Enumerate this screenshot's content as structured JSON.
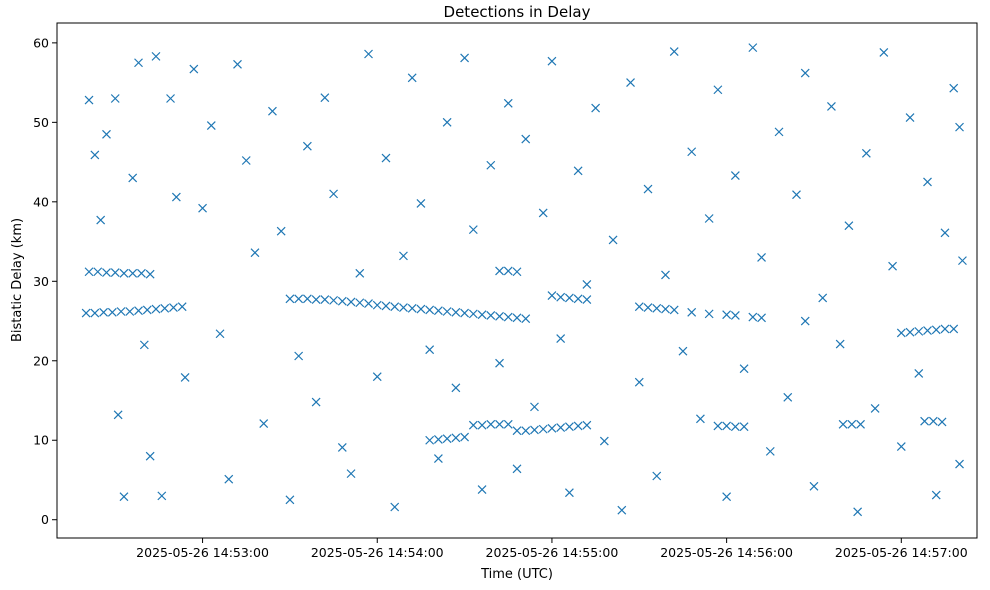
{
  "chart_data": {
    "type": "scatter",
    "title": "Detections in Delay",
    "xlabel": "Time (UTC)",
    "ylabel": "Bistatic Delay (km)",
    "marker": "x",
    "color": "#1f77b4",
    "grid": false,
    "legend": "none",
    "xlim": [
      "2025-05-26 14:52:10",
      "2025-05-26 14:57:26"
    ],
    "ylim": [
      -2.3,
      62.5
    ],
    "xticks": [
      "2025-05-26 14:53:00",
      "2025-05-26 14:54:00",
      "2025-05-26 14:55:00",
      "2025-05-26 14:56:00",
      "2025-05-26 14:57:00"
    ],
    "yticks": [
      0,
      10,
      20,
      30,
      40,
      50,
      60
    ],
    "series": [
      {
        "points": [
          [
            "2025-05-26 14:52:21",
            31.2
          ],
          [
            "2025-05-26 14:52:24",
            31.2
          ],
          [
            "2025-05-26 14:52:27",
            31.1
          ],
          [
            "2025-05-26 14:52:30",
            31.1
          ],
          [
            "2025-05-26 14:52:33",
            31.0
          ],
          [
            "2025-05-26 14:52:36",
            31.0
          ],
          [
            "2025-05-26 14:52:39",
            31.0
          ],
          [
            "2025-05-26 14:52:42",
            30.9
          ],
          [
            "2025-05-26 14:52:20",
            26.0
          ],
          [
            "2025-05-26 14:52:23",
            26.0
          ],
          [
            "2025-05-26 14:52:26",
            26.1
          ],
          [
            "2025-05-26 14:52:29",
            26.1
          ],
          [
            "2025-05-26 14:52:32",
            26.2
          ],
          [
            "2025-05-26 14:52:35",
            26.2
          ],
          [
            "2025-05-26 14:52:38",
            26.3
          ],
          [
            "2025-05-26 14:52:41",
            26.4
          ],
          [
            "2025-05-26 14:52:44",
            26.5
          ],
          [
            "2025-05-26 14:52:47",
            26.6
          ],
          [
            "2025-05-26 14:52:50",
            26.7
          ],
          [
            "2025-05-26 14:52:53",
            26.8
          ],
          [
            "2025-05-26 14:53:30",
            27.8
          ],
          [
            "2025-05-26 14:53:33",
            27.8
          ],
          [
            "2025-05-26 14:53:36",
            27.8
          ],
          [
            "2025-05-26 14:53:39",
            27.7
          ],
          [
            "2025-05-26 14:53:42",
            27.7
          ],
          [
            "2025-05-26 14:53:45",
            27.6
          ],
          [
            "2025-05-26 14:53:48",
            27.5
          ],
          [
            "2025-05-26 14:53:51",
            27.4
          ],
          [
            "2025-05-26 14:53:54",
            27.3
          ],
          [
            "2025-05-26 14:53:57",
            27.2
          ],
          [
            "2025-05-26 14:54:00",
            27.0
          ],
          [
            "2025-05-26 14:54:03",
            26.9
          ],
          [
            "2025-05-26 14:54:06",
            26.8
          ],
          [
            "2025-05-26 14:54:09",
            26.7
          ],
          [
            "2025-05-26 14:54:12",
            26.6
          ],
          [
            "2025-05-26 14:54:15",
            26.5
          ],
          [
            "2025-05-26 14:54:18",
            26.4
          ],
          [
            "2025-05-26 14:54:21",
            26.3
          ],
          [
            "2025-05-26 14:54:24",
            26.2
          ],
          [
            "2025-05-26 14:54:27",
            26.1
          ],
          [
            "2025-05-26 14:54:30",
            26.0
          ],
          [
            "2025-05-26 14:54:33",
            25.9
          ],
          [
            "2025-05-26 14:54:36",
            25.8
          ],
          [
            "2025-05-26 14:54:39",
            25.7
          ],
          [
            "2025-05-26 14:54:42",
            25.6
          ],
          [
            "2025-05-26 14:54:45",
            25.5
          ],
          [
            "2025-05-26 14:54:48",
            25.4
          ],
          [
            "2025-05-26 14:54:51",
            25.3
          ],
          [
            "2025-05-26 14:54:18",
            10.0
          ],
          [
            "2025-05-26 14:54:21",
            10.1
          ],
          [
            "2025-05-26 14:54:24",
            10.2
          ],
          [
            "2025-05-26 14:54:27",
            10.3
          ],
          [
            "2025-05-26 14:54:30",
            10.4
          ],
          [
            "2025-05-26 14:54:33",
            11.9
          ],
          [
            "2025-05-26 14:54:36",
            11.9
          ],
          [
            "2025-05-26 14:54:39",
            12.0
          ],
          [
            "2025-05-26 14:54:42",
            12.0
          ],
          [
            "2025-05-26 14:54:45",
            12.0
          ],
          [
            "2025-05-26 14:54:48",
            11.2
          ],
          [
            "2025-05-26 14:54:51",
            11.2
          ],
          [
            "2025-05-26 14:54:54",
            11.3
          ],
          [
            "2025-05-26 14:54:57",
            11.4
          ],
          [
            "2025-05-26 14:55:00",
            11.5
          ],
          [
            "2025-05-26 14:55:03",
            11.6
          ],
          [
            "2025-05-26 14:55:06",
            11.7
          ],
          [
            "2025-05-26 14:55:09",
            11.8
          ],
          [
            "2025-05-26 14:55:12",
            11.9
          ],
          [
            "2025-05-26 14:54:42",
            31.3
          ],
          [
            "2025-05-26 14:54:45",
            31.3
          ],
          [
            "2025-05-26 14:54:48",
            31.2
          ],
          [
            "2025-05-26 14:55:00",
            28.2
          ],
          [
            "2025-05-26 14:55:03",
            28.0
          ],
          [
            "2025-05-26 14:55:06",
            27.9
          ],
          [
            "2025-05-26 14:55:09",
            27.8
          ],
          [
            "2025-05-26 14:55:12",
            27.7
          ],
          [
            "2025-05-26 14:55:30",
            26.8
          ],
          [
            "2025-05-26 14:55:33",
            26.7
          ],
          [
            "2025-05-26 14:55:36",
            26.6
          ],
          [
            "2025-05-26 14:55:39",
            26.5
          ],
          [
            "2025-05-26 14:55:42",
            26.4
          ],
          [
            "2025-05-26 14:55:48",
            26.1
          ],
          [
            "2025-05-26 14:55:54",
            25.9
          ],
          [
            "2025-05-26 14:55:57",
            11.8
          ],
          [
            "2025-05-26 14:56:00",
            11.8
          ],
          [
            "2025-05-26 14:56:03",
            11.7
          ],
          [
            "2025-05-26 14:56:06",
            11.7
          ],
          [
            "2025-05-26 14:56:00",
            25.8
          ],
          [
            "2025-05-26 14:56:03",
            25.7
          ],
          [
            "2025-05-26 14:56:09",
            25.5
          ],
          [
            "2025-05-26 14:56:12",
            25.4
          ],
          [
            "2025-05-26 14:56:27",
            25.0
          ],
          [
            "2025-05-26 14:56:40",
            12.0
          ],
          [
            "2025-05-26 14:56:43",
            12.0
          ],
          [
            "2025-05-26 14:56:46",
            12.0
          ],
          [
            "2025-05-26 14:57:00",
            23.5
          ],
          [
            "2025-05-26 14:57:03",
            23.6
          ],
          [
            "2025-05-26 14:57:06",
            23.7
          ],
          [
            "2025-05-26 14:57:09",
            23.8
          ],
          [
            "2025-05-26 14:57:12",
            23.9
          ],
          [
            "2025-05-26 14:57:15",
            24.0
          ],
          [
            "2025-05-26 14:57:18",
            24.0
          ],
          [
            "2025-05-26 14:57:08",
            12.4
          ],
          [
            "2025-05-26 14:57:11",
            12.4
          ],
          [
            "2025-05-26 14:57:14",
            12.3
          ],
          [
            "2025-05-26 14:52:21",
            52.8
          ],
          [
            "2025-05-26 14:52:23",
            45.9
          ],
          [
            "2025-05-26 14:52:25",
            37.7
          ],
          [
            "2025-05-26 14:52:27",
            48.5
          ],
          [
            "2025-05-26 14:52:30",
            53.0
          ],
          [
            "2025-05-26 14:52:31",
            13.2
          ],
          [
            "2025-05-26 14:52:33",
            2.9
          ],
          [
            "2025-05-26 14:52:36",
            43.0
          ],
          [
            "2025-05-26 14:52:38",
            57.5
          ],
          [
            "2025-05-26 14:52:40",
            22.0
          ],
          [
            "2025-05-26 14:52:42",
            8.0
          ],
          [
            "2025-05-26 14:52:44",
            58.3
          ],
          [
            "2025-05-26 14:52:46",
            3.0
          ],
          [
            "2025-05-26 14:52:49",
            53.0
          ],
          [
            "2025-05-26 14:52:51",
            40.6
          ],
          [
            "2025-05-26 14:52:54",
            17.9
          ],
          [
            "2025-05-26 14:52:57",
            56.7
          ],
          [
            "2025-05-26 14:53:00",
            39.2
          ],
          [
            "2025-05-26 14:53:03",
            49.6
          ],
          [
            "2025-05-26 14:53:06",
            23.4
          ],
          [
            "2025-05-26 14:53:09",
            5.1
          ],
          [
            "2025-05-26 14:53:12",
            57.3
          ],
          [
            "2025-05-26 14:53:15",
            45.2
          ],
          [
            "2025-05-26 14:53:18",
            33.6
          ],
          [
            "2025-05-26 14:53:21",
            12.1
          ],
          [
            "2025-05-26 14:53:24",
            51.4
          ],
          [
            "2025-05-26 14:53:27",
            36.3
          ],
          [
            "2025-05-26 14:53:30",
            2.5
          ],
          [
            "2025-05-26 14:53:33",
            20.6
          ],
          [
            "2025-05-26 14:53:36",
            47.0
          ],
          [
            "2025-05-26 14:53:39",
            14.8
          ],
          [
            "2025-05-26 14:53:42",
            53.1
          ],
          [
            "2025-05-26 14:53:45",
            41.0
          ],
          [
            "2025-05-26 14:53:48",
            9.1
          ],
          [
            "2025-05-26 14:53:51",
            5.8
          ],
          [
            "2025-05-26 14:53:54",
            31.0
          ],
          [
            "2025-05-26 14:53:57",
            58.6
          ],
          [
            "2025-05-26 14:54:00",
            18.0
          ],
          [
            "2025-05-26 14:54:03",
            45.5
          ],
          [
            "2025-05-26 14:54:06",
            1.6
          ],
          [
            "2025-05-26 14:54:09",
            33.2
          ],
          [
            "2025-05-26 14:54:12",
            55.6
          ],
          [
            "2025-05-26 14:54:15",
            39.8
          ],
          [
            "2025-05-26 14:54:18",
            21.4
          ],
          [
            "2025-05-26 14:54:21",
            7.7
          ],
          [
            "2025-05-26 14:54:24",
            50.0
          ],
          [
            "2025-05-26 14:54:27",
            16.6
          ],
          [
            "2025-05-26 14:54:30",
            58.1
          ],
          [
            "2025-05-26 14:54:33",
            36.5
          ],
          [
            "2025-05-26 14:54:36",
            3.8
          ],
          [
            "2025-05-26 14:54:39",
            44.6
          ],
          [
            "2025-05-26 14:54:42",
            19.7
          ],
          [
            "2025-05-26 14:54:45",
            52.4
          ],
          [
            "2025-05-26 14:54:48",
            6.4
          ],
          [
            "2025-05-26 14:54:51",
            47.9
          ],
          [
            "2025-05-26 14:54:54",
            14.2
          ],
          [
            "2025-05-26 14:54:57",
            38.6
          ],
          [
            "2025-05-26 14:55:00",
            57.7
          ],
          [
            "2025-05-26 14:55:03",
            22.8
          ],
          [
            "2025-05-26 14:55:06",
            3.4
          ],
          [
            "2025-05-26 14:55:09",
            43.9
          ],
          [
            "2025-05-26 14:55:12",
            29.6
          ],
          [
            "2025-05-26 14:55:15",
            51.8
          ],
          [
            "2025-05-26 14:55:18",
            9.9
          ],
          [
            "2025-05-26 14:55:21",
            35.2
          ],
          [
            "2025-05-26 14:55:24",
            1.2
          ],
          [
            "2025-05-26 14:55:27",
            55.0
          ],
          [
            "2025-05-26 14:55:30",
            17.3
          ],
          [
            "2025-05-26 14:55:33",
            41.6
          ],
          [
            "2025-05-26 14:55:36",
            5.5
          ],
          [
            "2025-05-26 14:55:39",
            30.8
          ],
          [
            "2025-05-26 14:55:42",
            58.9
          ],
          [
            "2025-05-26 14:55:45",
            21.2
          ],
          [
            "2025-05-26 14:55:48",
            46.3
          ],
          [
            "2025-05-26 14:55:51",
            12.7
          ],
          [
            "2025-05-26 14:55:54",
            37.9
          ],
          [
            "2025-05-26 14:55:57",
            54.1
          ],
          [
            "2025-05-26 14:56:00",
            2.9
          ],
          [
            "2025-05-26 14:56:03",
            43.3
          ],
          [
            "2025-05-26 14:56:06",
            19.0
          ],
          [
            "2025-05-26 14:56:09",
            59.4
          ],
          [
            "2025-05-26 14:56:12",
            33.0
          ],
          [
            "2025-05-26 14:56:15",
            8.6
          ],
          [
            "2025-05-26 14:56:18",
            48.8
          ],
          [
            "2025-05-26 14:56:21",
            15.4
          ],
          [
            "2025-05-26 14:56:24",
            40.9
          ],
          [
            "2025-05-26 14:56:27",
            56.2
          ],
          [
            "2025-05-26 14:56:30",
            4.2
          ],
          [
            "2025-05-26 14:56:33",
            27.9
          ],
          [
            "2025-05-26 14:56:36",
            52.0
          ],
          [
            "2025-05-26 14:56:39",
            22.1
          ],
          [
            "2025-05-26 14:56:42",
            37.0
          ],
          [
            "2025-05-26 14:56:45",
            1.0
          ],
          [
            "2025-05-26 14:56:48",
            46.1
          ],
          [
            "2025-05-26 14:56:51",
            14.0
          ],
          [
            "2025-05-26 14:56:54",
            58.8
          ],
          [
            "2025-05-26 14:56:57",
            31.9
          ],
          [
            "2025-05-26 14:57:00",
            9.2
          ],
          [
            "2025-05-26 14:57:03",
            50.6
          ],
          [
            "2025-05-26 14:57:06",
            18.4
          ],
          [
            "2025-05-26 14:57:09",
            42.5
          ],
          [
            "2025-05-26 14:57:12",
            3.1
          ],
          [
            "2025-05-26 14:57:15",
            36.1
          ],
          [
            "2025-05-26 14:57:18",
            54.3
          ],
          [
            "2025-05-26 14:57:20",
            7.0
          ],
          [
            "2025-05-26 14:57:21",
            32.6
          ],
          [
            "2025-05-26 14:57:20",
            49.4
          ]
        ]
      }
    ]
  }
}
